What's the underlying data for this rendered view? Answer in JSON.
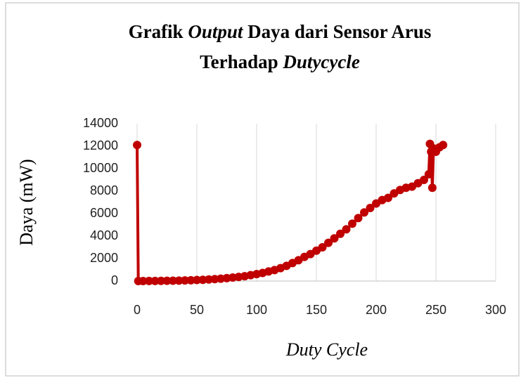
{
  "chart_data": {
    "type": "line",
    "title": [
      "Grafik",
      "Output",
      "Daya dari Sensor Arus",
      "Terhadap",
      "Dutycycle"
    ],
    "xlabel": "Duty Cycle",
    "ylabel": "Daya (mW)",
    "x": [
      0,
      1,
      5,
      10,
      15,
      20,
      25,
      30,
      35,
      40,
      45,
      50,
      55,
      60,
      65,
      70,
      75,
      80,
      85,
      90,
      95,
      100,
      105,
      110,
      115,
      120,
      125,
      130,
      135,
      140,
      145,
      150,
      155,
      160,
      165,
      170,
      175,
      180,
      185,
      190,
      195,
      200,
      205,
      210,
      215,
      220,
      225,
      230,
      235,
      240,
      244,
      245,
      246,
      247,
      248,
      250,
      253,
      256
    ],
    "series": [
      {
        "name": "Daya",
        "color": "#c00000",
        "values": [
          12100,
          0,
          2,
          5,
          10,
          15,
          20,
          30,
          40,
          55,
          70,
          90,
          110,
          140,
          170,
          210,
          260,
          310,
          370,
          430,
          520,
          620,
          720,
          850,
          980,
          1150,
          1350,
          1600,
          1850,
          2150,
          2400,
          2700,
          3000,
          3400,
          3800,
          4200,
          4600,
          5100,
          5600,
          6100,
          6500,
          6900,
          7200,
          7400,
          7800,
          8100,
          8300,
          8400,
          8700,
          9000,
          9500,
          12200,
          11500,
          8300,
          11800,
          11500,
          11900,
          12100
        ]
      }
    ],
    "xlim": [
      0,
      300
    ],
    "xticks": [
      0,
      50,
      100,
      150,
      200,
      250,
      300
    ],
    "ylim": [
      0,
      14000
    ],
    "yticks": [
      0,
      2000,
      4000,
      6000,
      8000,
      10000,
      12000,
      14000
    ],
    "grid": true
  }
}
